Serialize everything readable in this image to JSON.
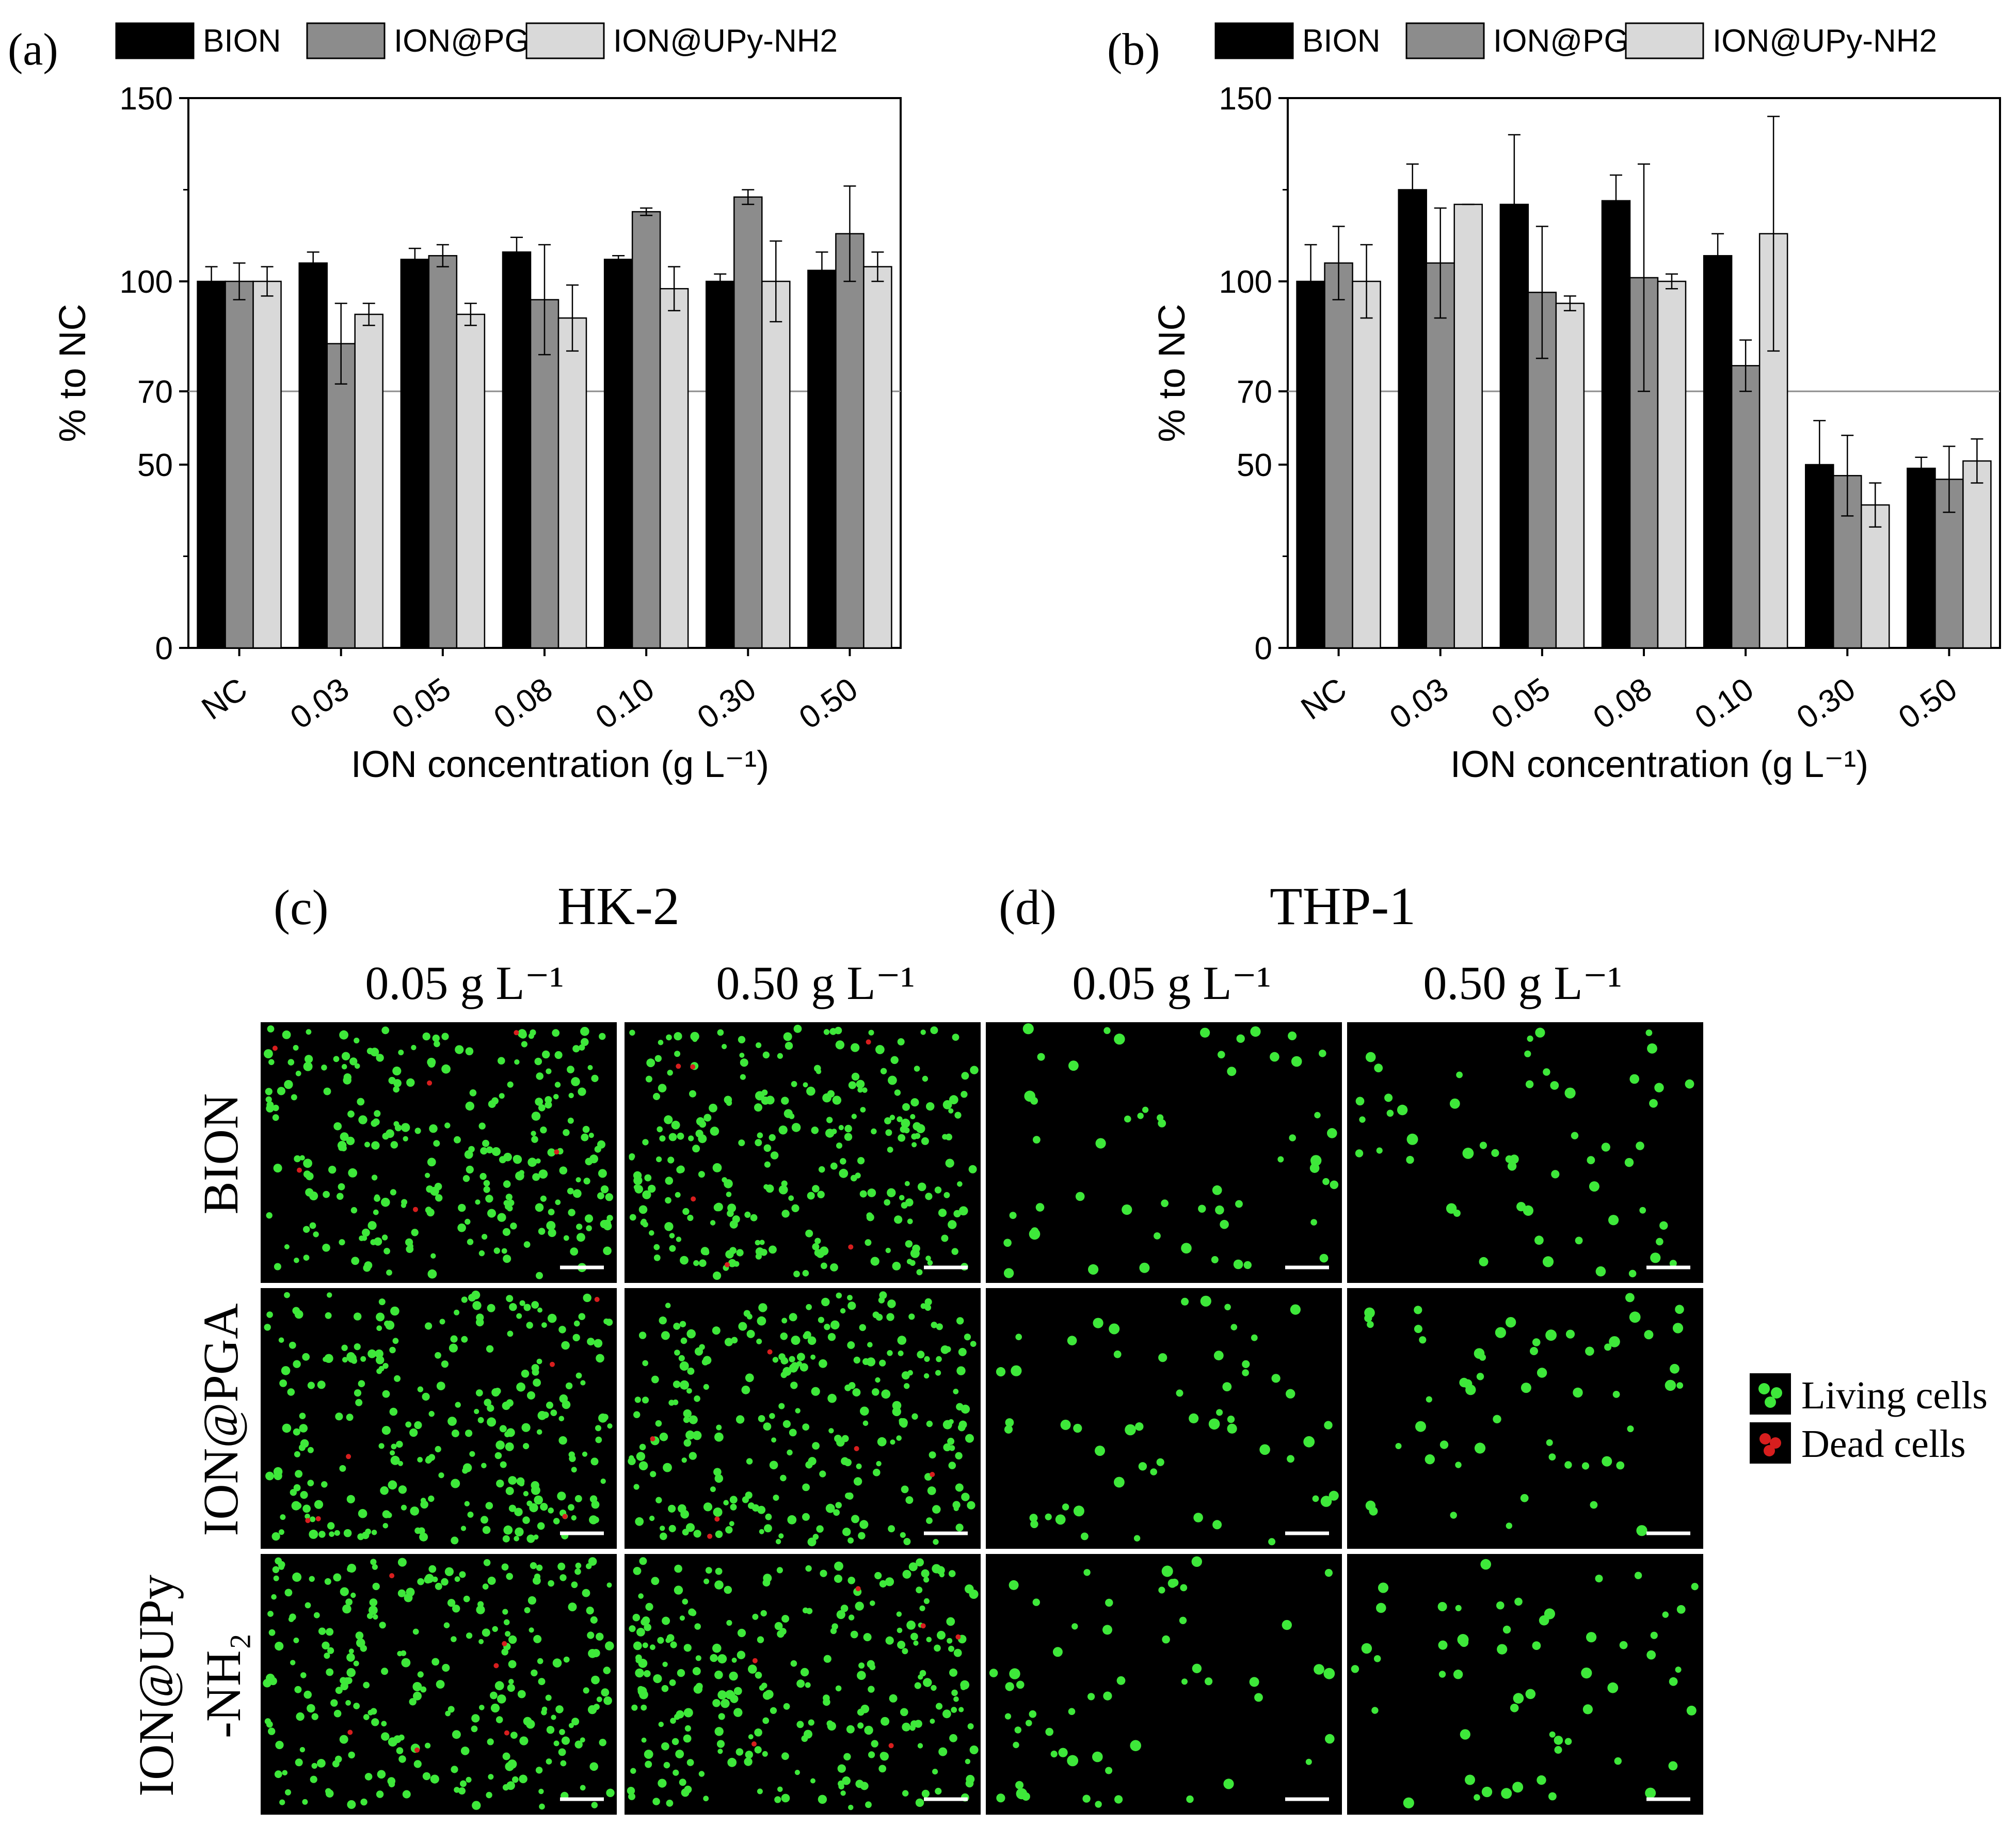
{
  "charts": {
    "chart_data": [
      {
        "type": "bar",
        "panel_label": "(a)",
        "categories": [
          "NC",
          "0.03",
          "0.05",
          "0.08",
          "0.10",
          "0.30",
          "0.50"
        ],
        "series": [
          {
            "name": "BION",
            "color": "#000000",
            "values": [
              100,
              105,
              106,
              108,
              106,
              100,
              103
            ],
            "errors": [
              4,
              3,
              3,
              4,
              1,
              2,
              5
            ]
          },
          {
            "name": "ION@PGA",
            "color": "#8c8c8c",
            "values": [
              100,
              83,
              107,
              95,
              119,
              123,
              113
            ],
            "errors": [
              5,
              11,
              3,
              15,
              1,
              2,
              13
            ]
          },
          {
            "name": "ION@UPy-NH2",
            "color": "#d9d9d9",
            "values": [
              100,
              91,
              91,
              90,
              98,
              100,
              104
            ],
            "errors": [
              4,
              3,
              3,
              9,
              6,
              11,
              4
            ]
          }
        ],
        "ylabel": "% to NC",
        "xlabel": "ION concentration (g L⁻¹)",
        "ylim": [
          0,
          150
        ],
        "yticks": [
          "0",
          "50",
          "70",
          "100",
          "150"
        ],
        "reference_line": 70
      },
      {
        "type": "bar",
        "panel_label": "(b)",
        "categories": [
          "NC",
          "0.03",
          "0.05",
          "0.08",
          "0.10",
          "0.30",
          "0.50"
        ],
        "series": [
          {
            "name": "BION",
            "color": "#000000",
            "values": [
              100,
              125,
              121,
              122,
              107,
              50,
              49
            ],
            "errors": [
              10,
              7,
              19,
              7,
              6,
              12,
              3
            ]
          },
          {
            "name": "ION@PGA",
            "color": "#8c8c8c",
            "values": [
              105,
              105,
              97,
              101,
              77,
              47,
              46
            ],
            "errors": [
              10,
              15,
              18,
              31,
              7,
              11,
              9
            ]
          },
          {
            "name": "ION@UPy-NH2",
            "color": "#d9d9d9",
            "values": [
              100,
              121,
              94,
              100,
              113,
              39,
              51
            ],
            "errors": [
              10,
              0,
              2,
              2,
              32,
              6,
              6
            ]
          }
        ],
        "ylabel": "% to NC",
        "xlabel": "ION concentration (g L⁻¹)",
        "ylim": [
          0,
          150
        ],
        "yticks": [
          "0",
          "50",
          "70",
          "100",
          "150"
        ],
        "reference_line": 70
      }
    ]
  },
  "micro": {
    "labels": {
      "c": "(c)",
      "d": "(d)",
      "hk2": "HK-2",
      "thp1": "THP-1",
      "conc_low": "0.05 g L⁻¹",
      "conc_high": "0.50 g L⁻¹",
      "row_bion": "BION",
      "row_pga": "ION@PGA",
      "row_upy_1": "ION@UPy",
      "row_upy_2": "-NH₂",
      "legend_living": "Living cells",
      "legend_dead": "Dead cells"
    },
    "colors": {
      "living": "#3ee83a",
      "dead": "#d81e1e",
      "background": "#000000"
    }
  }
}
